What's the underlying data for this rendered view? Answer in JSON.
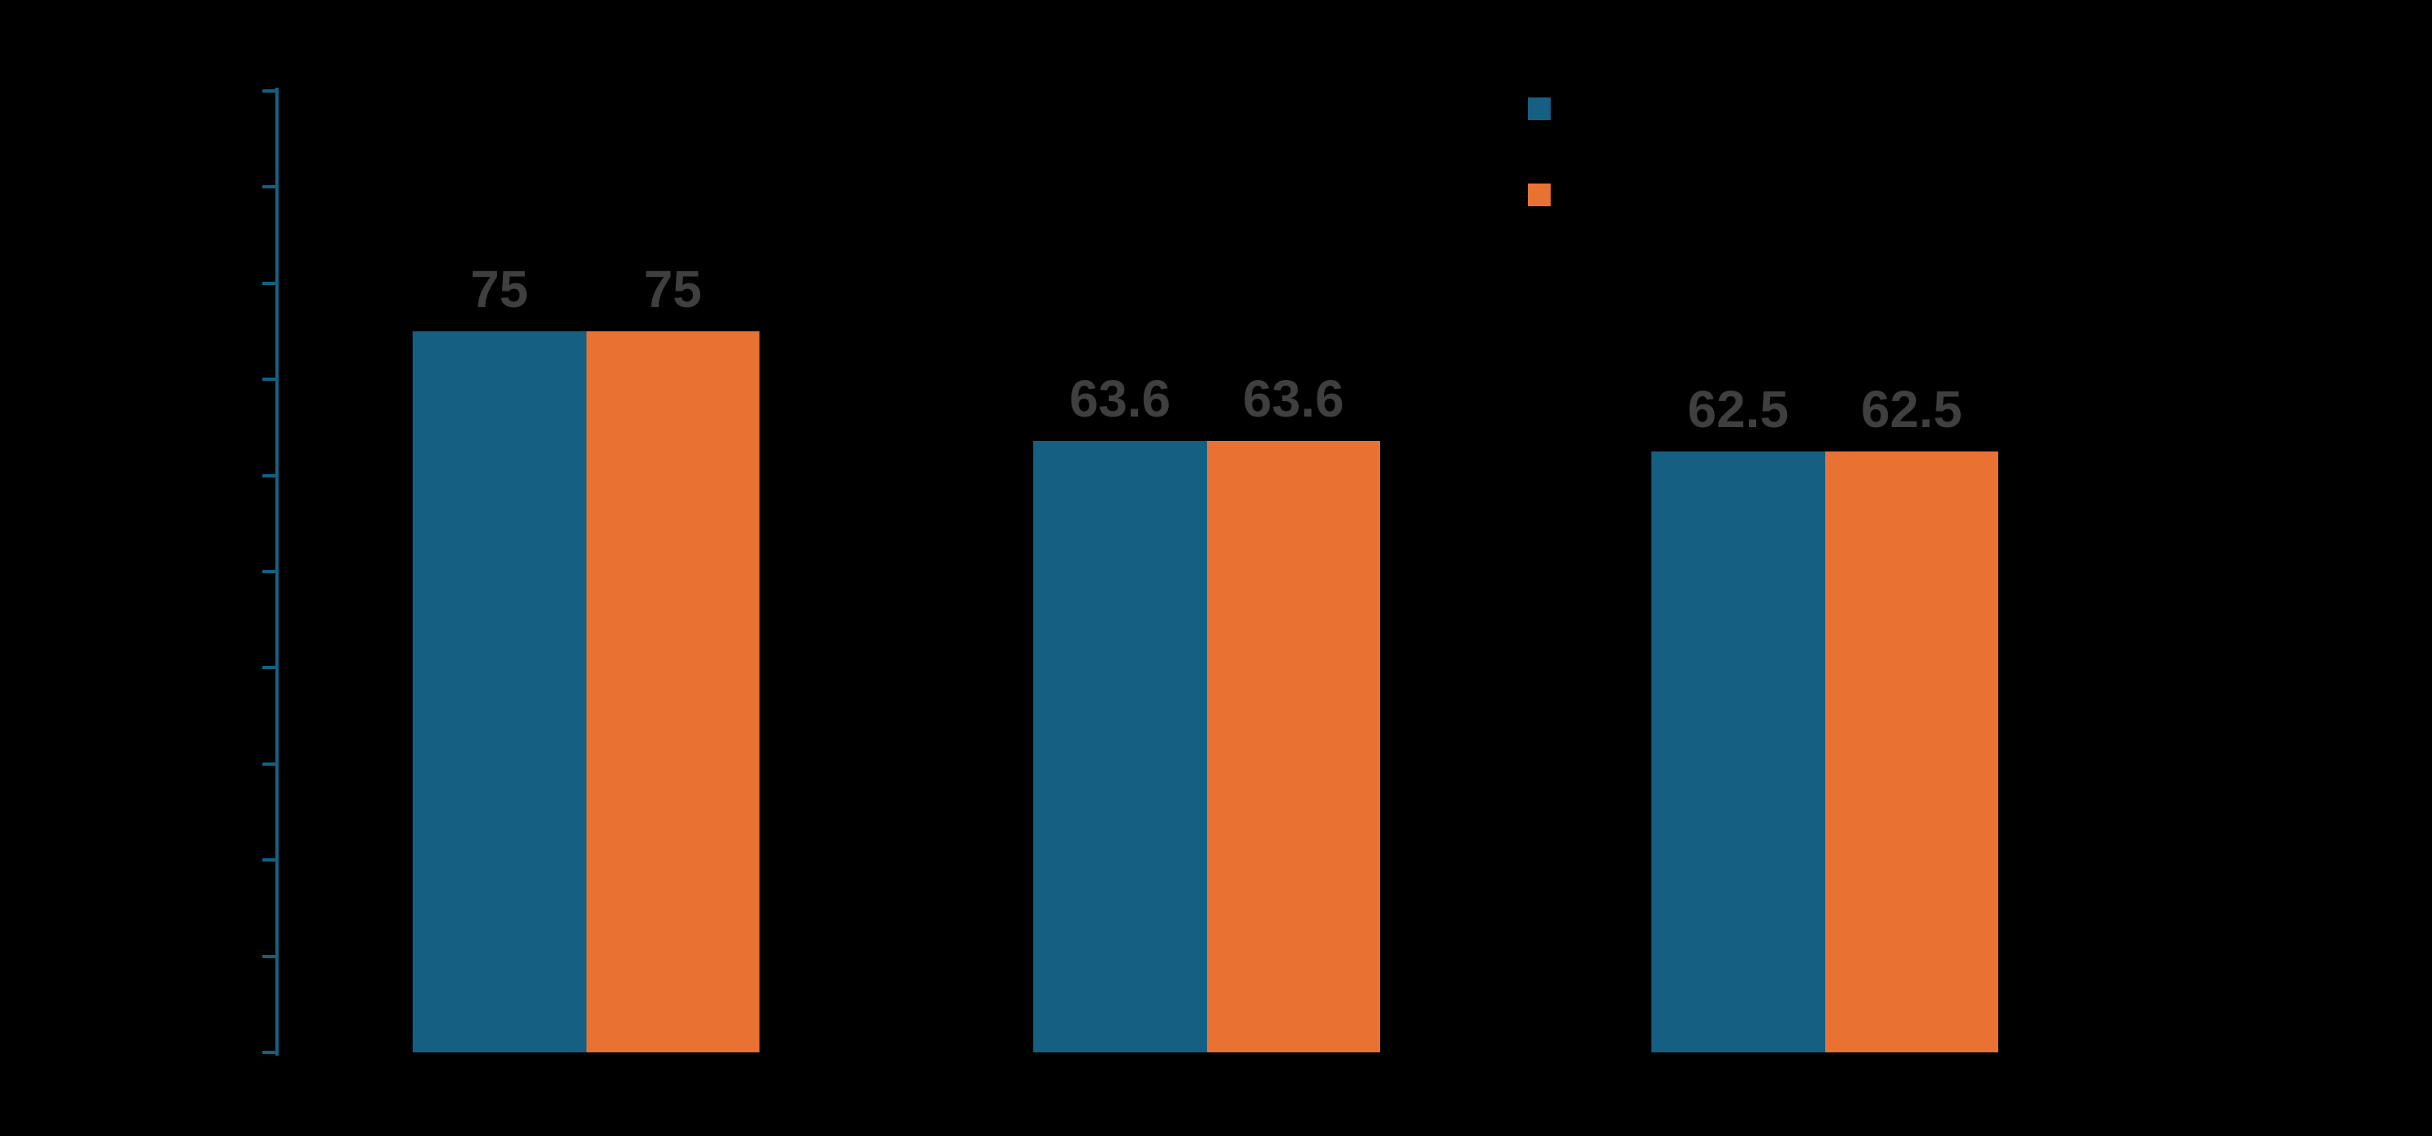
{
  "canvas": {
    "background_color": "#000000"
  },
  "chart_data": {
    "type": "bar",
    "title": "",
    "categories": [
      "",
      "",
      ""
    ],
    "series": [
      {
        "name": "",
        "color": "#156082",
        "values": [
          75,
          63.6,
          62.5
        ]
      },
      {
        "name": "",
        "color": "#E97132",
        "values": [
          75,
          63.6,
          62.5
        ]
      }
    ],
    "data_labels": {
      "show": true,
      "color": "#3F3F3F",
      "texts": [
        [
          "75",
          "75"
        ],
        [
          "63.6",
          "63.6"
        ],
        [
          "62.5",
          "62.5"
        ]
      ]
    },
    "xlabel": "",
    "ylabel": "",
    "ylim": [
      0,
      100
    ],
    "ytick_step": 10,
    "ytick_count": 11,
    "ytick_labels_visible": false,
    "xtick_labels_visible": false,
    "grid": false,
    "axis_color": "#156082",
    "legend": {
      "position": "top-right",
      "labels_visible": false,
      "entries": [
        {
          "label": "",
          "color": "#156082"
        },
        {
          "label": "",
          "color": "#E97132"
        }
      ]
    }
  }
}
